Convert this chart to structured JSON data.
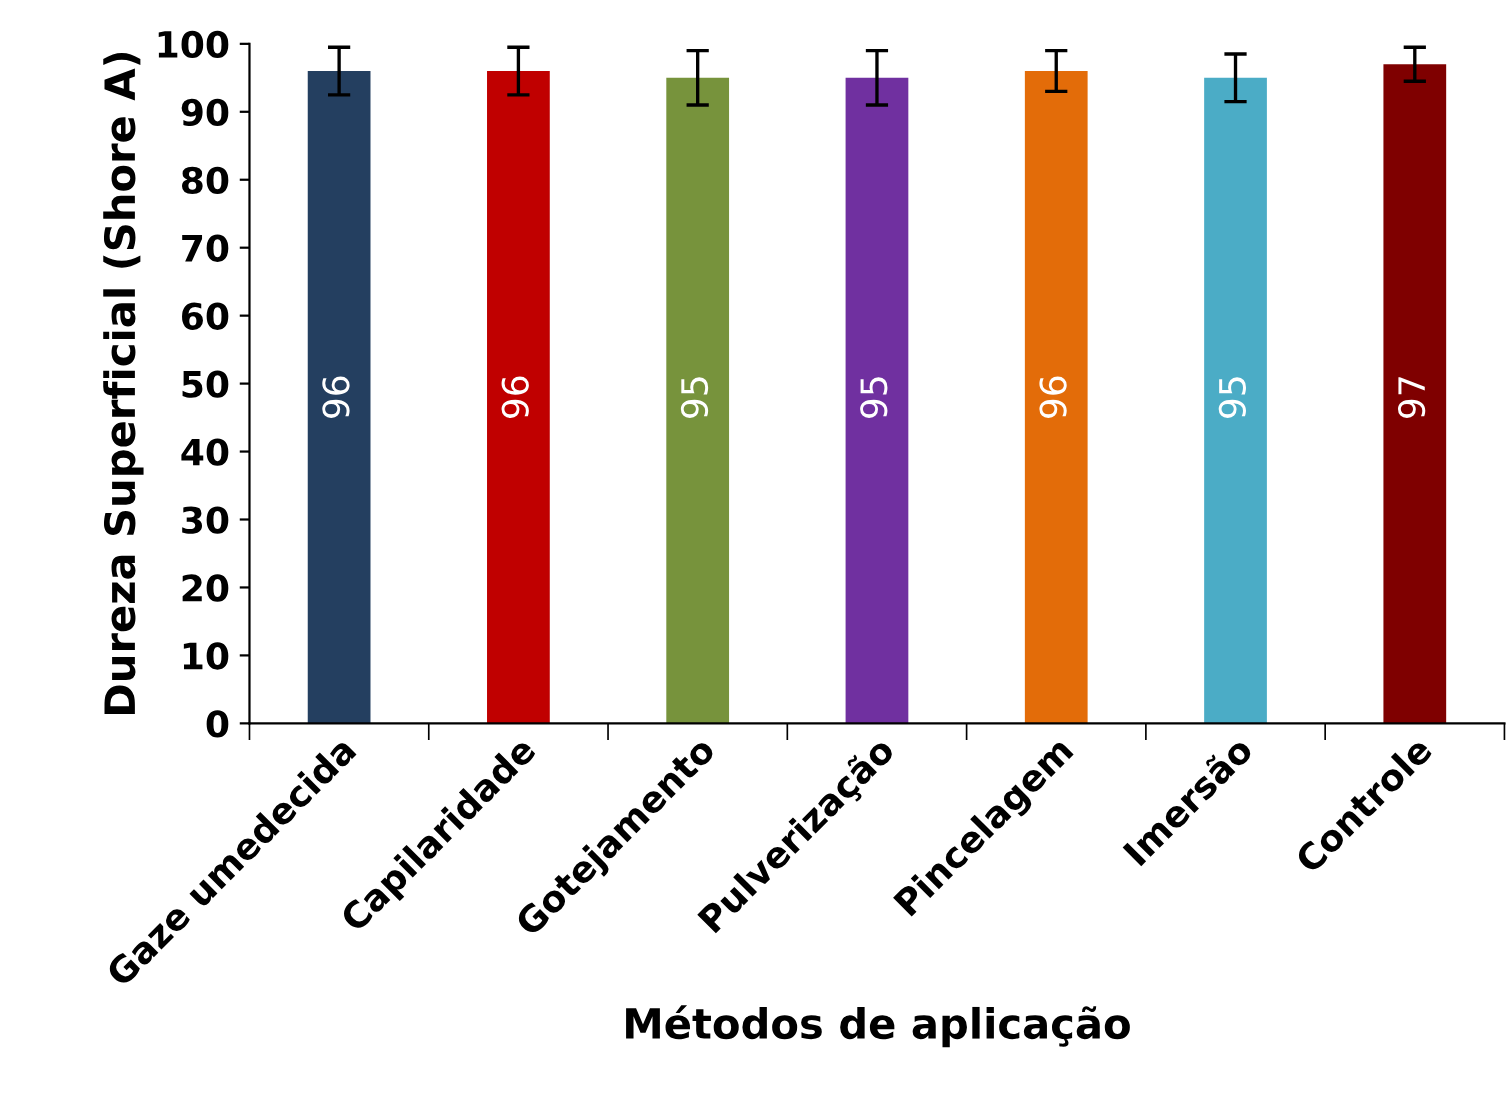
{
  "chart_data": {
    "type": "bar",
    "xlabel": "Métodos de aplicação",
    "ylabel": "Dureza Superficial (Shore A)",
    "categories": [
      "Gaze umedecida",
      "Capilaridade",
      "Gotejamento",
      "Pulverização",
      "Pincelagem",
      "Imersão",
      "Controle"
    ],
    "values": [
      96,
      96,
      95,
      95,
      96,
      95,
      97
    ],
    "errors": [
      3.5,
      3.5,
      4,
      4,
      3,
      3.5,
      2.5
    ],
    "colors": [
      "#243f60",
      "#c00000",
      "#77933c",
      "#7030a0",
      "#e36c09",
      "#4bacc6",
      "#7f0000"
    ],
    "ylim": [
      0,
      100
    ],
    "yticks": [
      0,
      10,
      20,
      30,
      40,
      50,
      60,
      70,
      80,
      90,
      100
    ],
    "data_labels": true,
    "grid": false,
    "legend": false
  }
}
